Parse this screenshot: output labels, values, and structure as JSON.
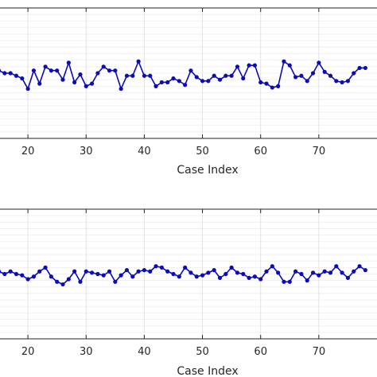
{
  "chart_data": [
    {
      "type": "line",
      "xlabel": "Case Index",
      "xlim": [
        15.2,
        80
      ],
      "xticks": [
        20,
        30,
        40,
        50,
        60,
        70
      ],
      "ylim": [
        0,
        1
      ],
      "grid": true,
      "series_color": "#0b0bb8",
      "series": [
        {
          "x": [
            15,
            16,
            17,
            18,
            19,
            20,
            21,
            22,
            23,
            24,
            25,
            26,
            27,
            28,
            29,
            30,
            31,
            32,
            33,
            34,
            35,
            36,
            37,
            38,
            39,
            40,
            41,
            42,
            43,
            44,
            45,
            46,
            47,
            48,
            49,
            50,
            51,
            52,
            53,
            54,
            55,
            56,
            57,
            58,
            59,
            60,
            61,
            62,
            63,
            64,
            65,
            66,
            67,
            68,
            69,
            70,
            71,
            72,
            73,
            74,
            75,
            76,
            77,
            78
          ],
          "y": [
            0.52,
            0.5,
            0.5,
            0.48,
            0.46,
            0.38,
            0.52,
            0.42,
            0.55,
            0.52,
            0.52,
            0.45,
            0.58,
            0.43,
            0.49,
            0.4,
            0.42,
            0.5,
            0.55,
            0.52,
            0.52,
            0.38,
            0.48,
            0.48,
            0.59,
            0.48,
            0.48,
            0.4,
            0.43,
            0.43,
            0.46,
            0.44,
            0.41,
            0.52,
            0.47,
            0.44,
            0.44,
            0.48,
            0.45,
            0.48,
            0.48,
            0.55,
            0.46,
            0.56,
            0.56,
            0.43,
            0.42,
            0.39,
            0.4,
            0.59,
            0.56,
            0.47,
            0.48,
            0.44,
            0.5,
            0.58,
            0.51,
            0.48,
            0.44,
            0.43,
            0.44,
            0.5,
            0.54,
            0.54
          ]
        }
      ]
    },
    {
      "type": "line",
      "xlabel": "Case Index",
      "xlim": [
        15.2,
        80
      ],
      "xticks": [
        20,
        30,
        40,
        50,
        60,
        70
      ],
      "ylim": [
        0,
        1
      ],
      "grid": true,
      "series_color": "#0b0bb8",
      "series": [
        {
          "x": [
            15,
            16,
            17,
            18,
            19,
            20,
            21,
            22,
            23,
            24,
            25,
            26,
            27,
            28,
            29,
            30,
            31,
            32,
            33,
            34,
            35,
            36,
            37,
            38,
            39,
            40,
            41,
            42,
            43,
            44,
            45,
            46,
            47,
            48,
            49,
            50,
            51,
            52,
            53,
            54,
            55,
            56,
            57,
            58,
            59,
            60,
            61,
            62,
            63,
            64,
            65,
            66,
            67,
            68,
            69,
            70,
            71,
            72,
            73,
            74,
            75,
            76,
            77,
            78
          ],
          "y": [
            0.52,
            0.5,
            0.52,
            0.5,
            0.49,
            0.46,
            0.48,
            0.52,
            0.55,
            0.48,
            0.44,
            0.42,
            0.46,
            0.52,
            0.44,
            0.52,
            0.51,
            0.5,
            0.49,
            0.52,
            0.44,
            0.49,
            0.53,
            0.48,
            0.52,
            0.53,
            0.52,
            0.56,
            0.55,
            0.52,
            0.5,
            0.48,
            0.55,
            0.51,
            0.48,
            0.49,
            0.51,
            0.53,
            0.47,
            0.5,
            0.55,
            0.51,
            0.5,
            0.47,
            0.48,
            0.46,
            0.52,
            0.56,
            0.51,
            0.44,
            0.44,
            0.52,
            0.5,
            0.45,
            0.51,
            0.49,
            0.52,
            0.51,
            0.56,
            0.51,
            0.47,
            0.52,
            0.56,
            0.53
          ]
        }
      ]
    }
  ]
}
